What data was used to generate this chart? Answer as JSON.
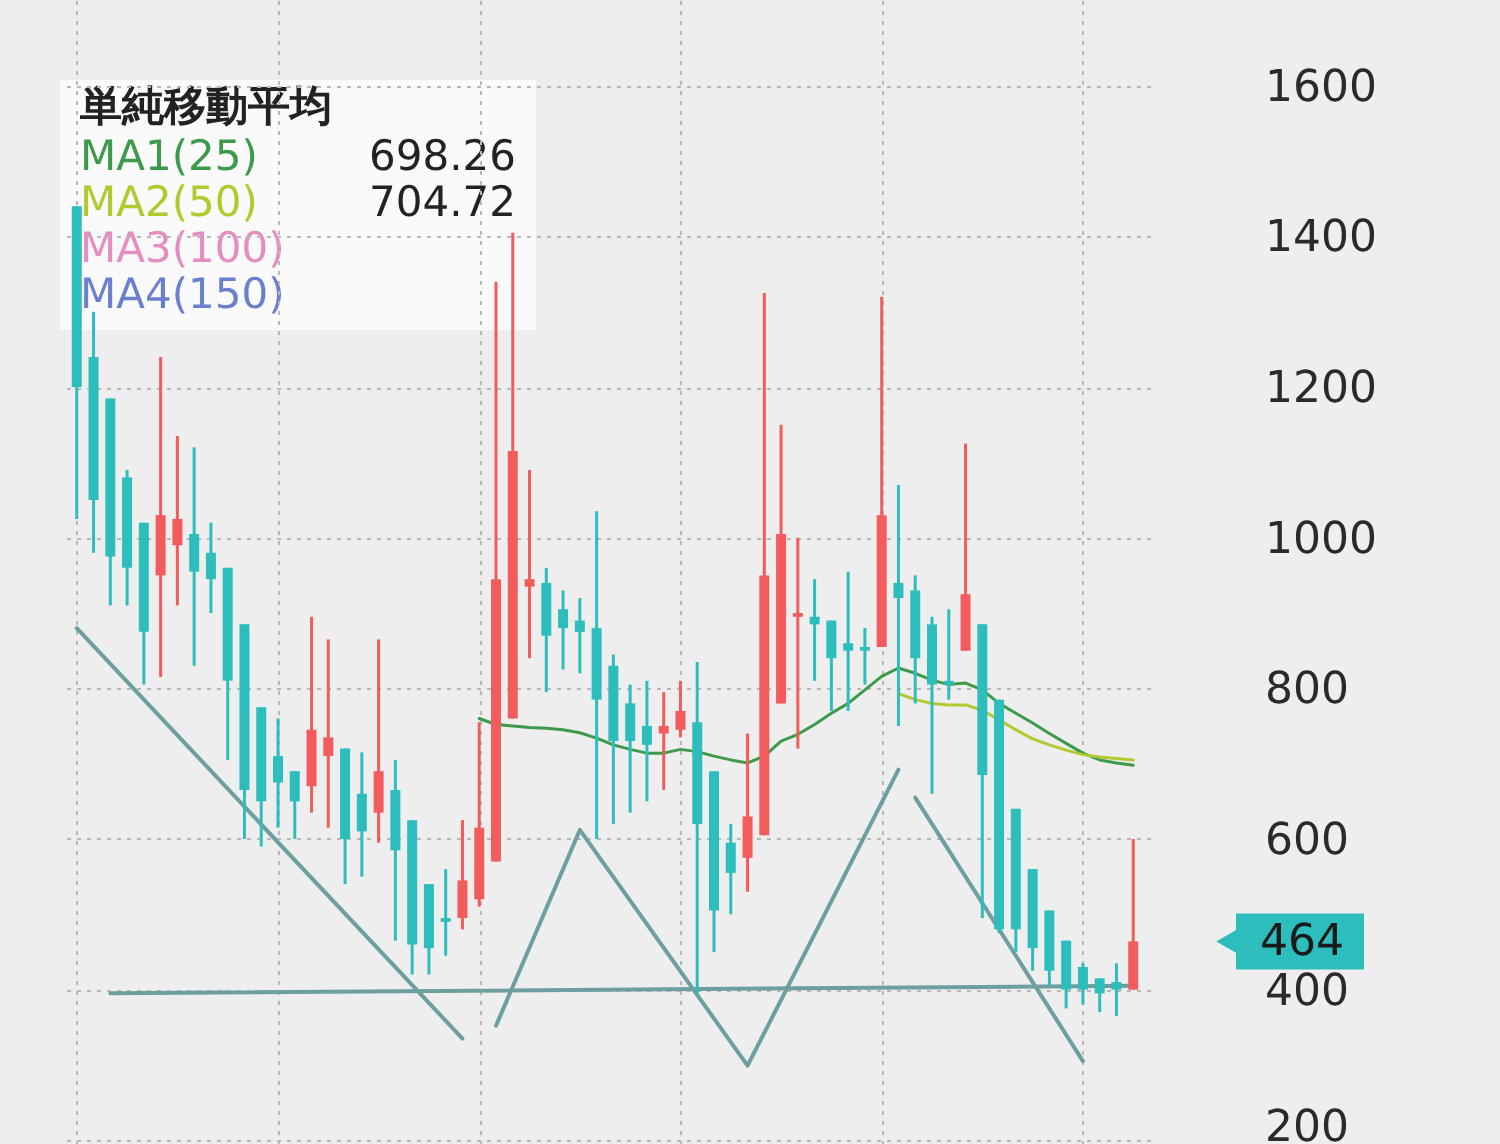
{
  "chart_data": {
    "type": "candlestick",
    "legend_title": "単純移動平均",
    "categories": [
      null,
      null,
      null,
      null,
      null,
      null,
      null,
      null,
      null,
      null,
      null,
      null,
      null,
      null,
      null,
      null,
      null,
      null,
      null,
      null,
      null,
      null,
      null,
      null,
      null,
      null,
      null,
      null,
      null,
      null,
      null,
      null,
      null,
      null,
      null,
      null,
      null,
      null,
      null,
      null,
      null,
      null,
      null,
      null,
      null,
      null,
      null,
      null,
      null,
      null,
      null,
      null,
      null,
      null,
      null,
      null,
      null,
      null,
      null,
      null,
      null,
      null,
      null,
      null
    ],
    "ohlc": [
      [
        1440,
        1440,
        1025,
        1200
      ],
      [
        1240,
        1300,
        980,
        1050
      ],
      [
        1185,
        1185,
        910,
        975
      ],
      [
        1080,
        1090,
        910,
        960
      ],
      [
        1020,
        1020,
        805,
        875
      ],
      [
        950,
        1240,
        815,
        1030
      ],
      [
        990,
        1135,
        910,
        1025
      ],
      [
        1005,
        1120,
        830,
        955
      ],
      [
        980,
        1020,
        900,
        945
      ],
      [
        960,
        960,
        705,
        810
      ],
      [
        885,
        885,
        600,
        665
      ],
      [
        775,
        775,
        590,
        650
      ],
      [
        710,
        760,
        615,
        675
      ],
      [
        690,
        690,
        600,
        650
      ],
      [
        670,
        895,
        635,
        745
      ],
      [
        710,
        865,
        615,
        735
      ],
      [
        720,
        720,
        540,
        600
      ],
      [
        660,
        715,
        550,
        610
      ],
      [
        635,
        865,
        595,
        690
      ],
      [
        665,
        705,
        465,
        585
      ],
      [
        625,
        625,
        420,
        460
      ],
      [
        540,
        540,
        420,
        455
      ],
      [
        495,
        560,
        445,
        490
      ],
      [
        495,
        625,
        480,
        545
      ],
      [
        520,
        755,
        510,
        615
      ],
      [
        570,
        1340,
        570,
        945
      ],
      [
        760,
        1405,
        760,
        1115
      ],
      [
        935,
        1090,
        840,
        945
      ],
      [
        940,
        960,
        795,
        870
      ],
      [
        905,
        930,
        825,
        880
      ],
      [
        890,
        920,
        820,
        875
      ],
      [
        880,
        1035,
        600,
        785
      ],
      [
        830,
        845,
        620,
        730
      ],
      [
        780,
        805,
        635,
        730
      ],
      [
        750,
        810,
        650,
        725
      ],
      [
        740,
        795,
        665,
        750
      ],
      [
        745,
        810,
        735,
        770
      ],
      [
        755,
        835,
        395,
        620
      ],
      [
        690,
        690,
        450,
        505
      ],
      [
        595,
        620,
        500,
        555
      ],
      [
        575,
        740,
        530,
        630
      ],
      [
        605,
        1325,
        605,
        950
      ],
      [
        780,
        1150,
        780,
        1005
      ],
      [
        895,
        1000,
        720,
        900
      ],
      [
        895,
        945,
        810,
        885
      ],
      [
        890,
        890,
        770,
        840
      ],
      [
        860,
        955,
        770,
        850
      ],
      [
        855,
        880,
        805,
        850
      ],
      [
        855,
        1320,
        855,
        1030
      ],
      [
        940,
        1070,
        750,
        920
      ],
      [
        930,
        950,
        780,
        840
      ],
      [
        885,
        895,
        660,
        805
      ],
      [
        810,
        905,
        785,
        805
      ],
      [
        850,
        1125,
        850,
        925
      ],
      [
        885,
        885,
        495,
        685
      ],
      [
        785,
        785,
        475,
        480
      ],
      [
        640,
        640,
        450,
        480
      ],
      [
        560,
        560,
        425,
        455
      ],
      [
        505,
        505,
        405,
        425
      ],
      [
        465,
        465,
        375,
        400
      ],
      [
        430,
        435,
        380,
        400
      ],
      [
        415,
        415,
        370,
        395
      ],
      [
        410,
        435,
        365,
        400
      ],
      [
        400,
        600,
        400,
        464
      ]
    ],
    "colors": [
      "#2ebdbd",
      "#2ebdbd",
      "#2ebdbd",
      "#2ebdbd",
      "#2ebdbd",
      "#f25c5c",
      "#f25c5c",
      "#2ebdbd",
      "#2ebdbd",
      "#2ebdbd",
      "#2ebdbd",
      "#2ebdbd",
      "#2ebdbd",
      "#2ebdbd",
      "#f25c5c",
      "#f25c5c",
      "#2ebdbd",
      "#2ebdbd",
      "#f25c5c",
      "#2ebdbd",
      "#2ebdbd",
      "#2ebdbd",
      "#2ebdbd",
      "#f25c5c",
      "#f25c5c",
      "#f25c5c",
      "#f25c5c",
      "#f25c5c",
      "#2ebdbd",
      "#2ebdbd",
      "#2ebdbd",
      "#2ebdbd",
      "#2ebdbd",
      "#2ebdbd",
      "#2ebdbd",
      "#f25c5c",
      "#f25c5c",
      "#2ebdbd",
      "#2ebdbd",
      "#2ebdbd",
      "#f25c5c",
      "#f25c5c",
      "#f25c5c",
      "#f25c5c",
      "#2ebdbd",
      "#2ebdbd",
      "#2ebdbd",
      "#2ebdbd",
      "#f25c5c",
      "#2ebdbd",
      "#2ebdbd",
      "#2ebdbd",
      "#2ebdbd",
      "#f25c5c",
      "#2ebdbd",
      "#2ebdbd",
      "#2ebdbd",
      "#2ebdbd",
      "#2ebdbd",
      "#2ebdbd",
      "#2ebdbd",
      "#2ebdbd",
      "#2ebdbd",
      "#f25c5c"
    ],
    "series": [
      {
        "type": "line",
        "name": "MA1(25)",
        "color": "#3d9a4a",
        "values": [
          null,
          null,
          null,
          null,
          null,
          null,
          null,
          null,
          null,
          null,
          null,
          null,
          null,
          null,
          null,
          null,
          null,
          null,
          null,
          null,
          null,
          null,
          null,
          null,
          760,
          752,
          750,
          748,
          747,
          745,
          741,
          734,
          725,
          719,
          714,
          714,
          719,
          716,
          710,
          705,
          701,
          710,
          730,
          739,
          752,
          767,
          780,
          798,
          816,
          827,
          820,
          811,
          805,
          807,
          798,
          780,
          767,
          754,
          740,
          727,
          714,
          705,
          701,
          698
        ]
      },
      {
        "type": "line",
        "name": "MA2(50)",
        "color": "#b4c830",
        "values": [
          null,
          null,
          null,
          null,
          null,
          null,
          null,
          null,
          null,
          null,
          null,
          null,
          null,
          null,
          null,
          null,
          null,
          null,
          null,
          null,
          null,
          null,
          null,
          null,
          null,
          null,
          null,
          null,
          null,
          null,
          null,
          null,
          null,
          null,
          null,
          null,
          null,
          null,
          null,
          null,
          null,
          null,
          null,
          null,
          null,
          null,
          null,
          null,
          null,
          793,
          785,
          780,
          778,
          778,
          771,
          758,
          745,
          733,
          725,
          718,
          712,
          709,
          707,
          705
        ]
      },
      {
        "type": "line",
        "name": "MA3(100)",
        "color": "#e58cc0",
        "values": [
          null,
          null,
          null,
          null,
          null,
          null,
          null,
          null,
          null,
          null,
          null,
          null,
          null,
          null,
          null,
          null,
          null,
          null,
          null,
          null,
          null,
          null,
          null,
          null,
          null,
          null,
          null,
          null,
          null,
          null,
          null,
          null,
          null,
          null,
          null,
          null,
          null,
          null,
          null,
          null,
          null,
          null,
          null,
          null,
          null,
          null,
          null,
          null,
          null,
          null,
          null,
          null,
          null,
          null,
          null,
          null,
          null,
          null,
          null,
          null,
          null,
          null,
          null,
          null
        ]
      },
      {
        "type": "line",
        "name": "MA4(150)",
        "color": "#6b7fcf",
        "values": [
          null,
          null,
          null,
          null,
          null,
          null,
          null,
          null,
          null,
          null,
          null,
          null,
          null,
          null,
          null,
          null,
          null,
          null,
          null,
          null,
          null,
          null,
          null,
          null,
          null,
          null,
          null,
          null,
          null,
          null,
          null,
          null,
          null,
          null,
          null,
          null,
          null,
          null,
          null,
          null,
          null,
          null,
          null,
          null,
          null,
          null,
          null,
          null,
          null,
          null,
          null,
          null,
          null,
          null,
          null,
          null,
          null,
          null,
          null,
          null,
          null,
          null,
          null,
          null
        ]
      },
      {
        "type": "line",
        "color": "#6d9ea0",
        "values": [
          880,
          null,
          null,
          null,
          null,
          null,
          null,
          null,
          null,
          null,
          null,
          null,
          null,
          null,
          null,
          null,
          null,
          null,
          null,
          null,
          null,
          null,
          null,
          335,
          null,
          null,
          null,
          null,
          null,
          null,
          null,
          null,
          null,
          null,
          null,
          null,
          null,
          null,
          null,
          null,
          null,
          null,
          null,
          null,
          null,
          null,
          null,
          null,
          null,
          null,
          null,
          null,
          null,
          null,
          null,
          null,
          null,
          null,
          null,
          null,
          null,
          null,
          null,
          null
        ]
      },
      {
        "type": "line",
        "color": "#6d9ea0",
        "values": [
          null,
          null,
          395,
          null,
          null,
          null,
          null,
          null,
          null,
          null,
          null,
          null,
          null,
          null,
          null,
          null,
          null,
          null,
          null,
          null,
          null,
          null,
          null,
          null,
          null,
          null,
          null,
          null,
          null,
          null,
          null,
          null,
          null,
          null,
          null,
          null,
          null,
          null,
          null,
          null,
          null,
          null,
          null,
          null,
          null,
          null,
          null,
          null,
          null,
          null,
          null,
          null,
          null,
          null,
          null,
          null,
          null,
          null,
          null,
          null,
          null,
          null,
          null,
          405
        ]
      },
      {
        "type": "line",
        "color": "#6d9ea0",
        "values": [
          null,
          null,
          null,
          null,
          null,
          null,
          null,
          null,
          null,
          null,
          null,
          null,
          null,
          null,
          null,
          null,
          null,
          null,
          null,
          null,
          null,
          null,
          null,
          null,
          null,
          352,
          null,
          null,
          null,
          null,
          612,
          null,
          null,
          null,
          null,
          null,
          null,
          null,
          null,
          null,
          299,
          null,
          null,
          null,
          null,
          null,
          null,
          null,
          null,
          692,
          null,
          null,
          null,
          null,
          null,
          null,
          null,
          null,
          null,
          null,
          null,
          null,
          null,
          null
        ]
      },
      {
        "type": "line",
        "color": "#6d9ea0",
        "values": [
          null,
          null,
          null,
          null,
          null,
          null,
          null,
          null,
          null,
          null,
          null,
          null,
          null,
          null,
          null,
          null,
          null,
          null,
          null,
          null,
          null,
          null,
          null,
          null,
          null,
          null,
          null,
          null,
          null,
          null,
          null,
          null,
          null,
          null,
          null,
          null,
          null,
          null,
          null,
          null,
          null,
          null,
          null,
          null,
          null,
          null,
          null,
          null,
          null,
          null,
          655,
          null,
          null,
          null,
          null,
          null,
          null,
          null,
          null,
          null,
          305,
          null,
          null,
          null
        ]
      }
    ],
    "ylim": [
      195,
      1714
    ],
    "yticks": [
      200,
      400,
      600,
      800,
      1000,
      1200,
      1400,
      1600
    ],
    "grid": true,
    "legend": "top left",
    "annotations": [
      "698.26",
      "704.72",
      "464"
    ]
  }
}
